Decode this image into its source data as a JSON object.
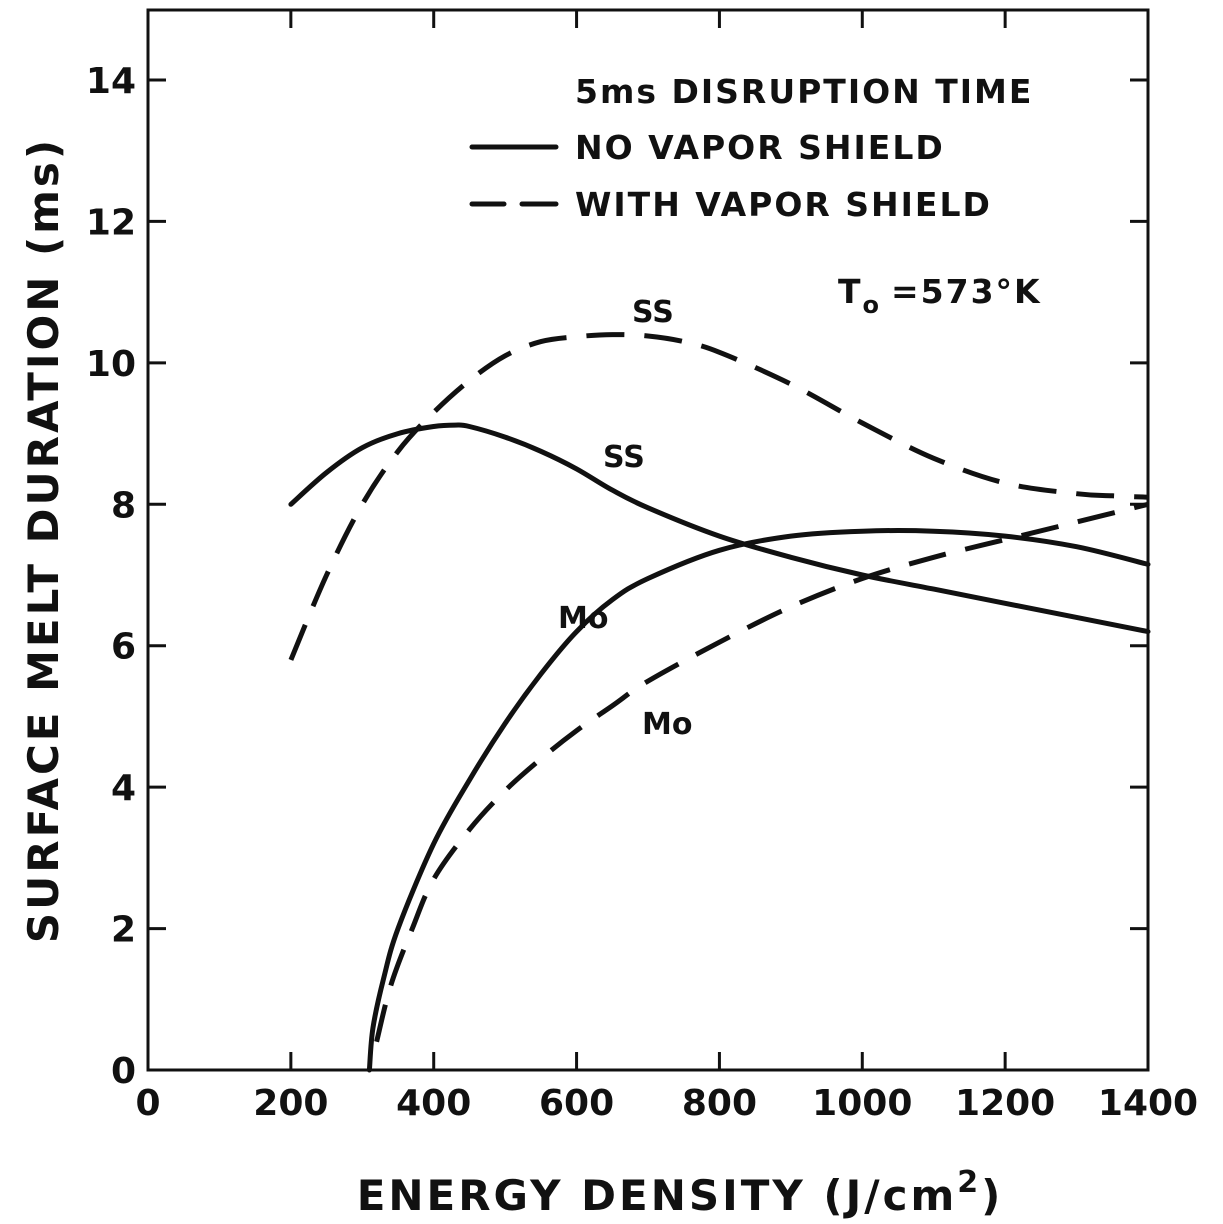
{
  "chart_data": {
    "type": "line",
    "title": "",
    "xlabel": "ENERGY DENSITY (J/cm",
    "xlabel_sup": "2",
    "xlabel_close": ")",
    "ylabel": "SURFACE MELT DURATION (ms)",
    "xlim": [
      0,
      1400
    ],
    "ylim": [
      0,
      14
    ],
    "xticks": [
      "0",
      "200",
      "400",
      "600",
      "800",
      "1000",
      "1200",
      "1400"
    ],
    "yticks": [
      "0",
      "2",
      "4",
      "6",
      "8",
      "10",
      "12",
      "14"
    ],
    "grid": false,
    "legend": {
      "placement": "top-right",
      "heading": "5ms DISRUPTION TIME",
      "entries": [
        {
          "label": "NO VAPOR SHIELD",
          "style": "solid"
        },
        {
          "label": "WITH VAPOR SHIELD",
          "style": "dashed"
        }
      ]
    },
    "annotations": {
      "temperature_main": "T",
      "temperature_sub": "o",
      "temperature_rest": "=573°K"
    },
    "series": [
      {
        "label": "SS",
        "style": "solid",
        "x": [
          200,
          250,
          300,
          350,
          400,
          430,
          450,
          500,
          550,
          600,
          650,
          700,
          800,
          900,
          1000,
          1100,
          1200,
          1300,
          1400
        ],
        "y": [
          8.0,
          8.45,
          8.8,
          9.0,
          9.1,
          9.12,
          9.1,
          8.95,
          8.75,
          8.5,
          8.2,
          7.95,
          7.55,
          7.25,
          7.0,
          6.8,
          6.6,
          6.4,
          6.2
        ]
      },
      {
        "label": "SS",
        "style": "dashed",
        "x": [
          200,
          250,
          300,
          350,
          400,
          450,
          500,
          550,
          600,
          650,
          700,
          750,
          800,
          900,
          1000,
          1100,
          1200,
          1300,
          1350,
          1400
        ],
        "y": [
          5.8,
          7.0,
          8.0,
          8.75,
          9.3,
          9.75,
          10.1,
          10.3,
          10.37,
          10.4,
          10.38,
          10.3,
          10.15,
          9.7,
          9.15,
          8.65,
          8.3,
          8.15,
          8.12,
          8.1
        ]
      },
      {
        "label": "Mo",
        "style": "solid",
        "x": [
          310,
          315,
          330,
          350,
          400,
          450,
          500,
          550,
          600,
          650,
          700,
          800,
          900,
          1000,
          1100,
          1200,
          1300,
          1400
        ],
        "y": [
          0.0,
          0.6,
          1.3,
          2.0,
          3.2,
          4.1,
          4.9,
          5.6,
          6.2,
          6.65,
          6.95,
          7.35,
          7.55,
          7.62,
          7.62,
          7.55,
          7.4,
          7.15
        ]
      },
      {
        "label": "Mo",
        "style": "dashed",
        "x": [
          320,
          340,
          370,
          400,
          450,
          500,
          550,
          600,
          650,
          700,
          800,
          900,
          1000,
          1100,
          1200,
          1300,
          1400
        ],
        "y": [
          0.4,
          1.2,
          2.0,
          2.7,
          3.4,
          3.95,
          4.4,
          4.8,
          5.15,
          5.5,
          6.05,
          6.55,
          6.95,
          7.25,
          7.5,
          7.75,
          8.0
        ]
      }
    ]
  }
}
